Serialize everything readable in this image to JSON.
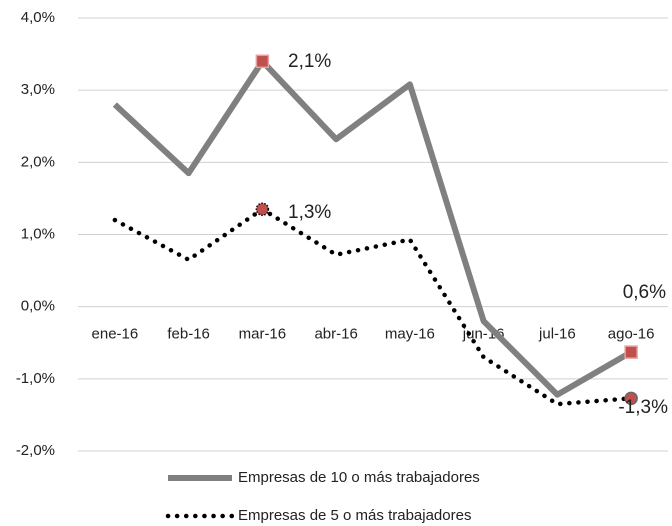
{
  "chart_data": {
    "type": "line",
    "categories": [
      "ene-16",
      "feb-16",
      "mar-16",
      "abr-16",
      "may-16",
      "jun-16",
      "jul-16",
      "ago-16"
    ],
    "series": [
      {
        "name": "Empresas de 10 o más trabajadores",
        "color": "#808080",
        "values": [
          2.8,
          1.85,
          3.4,
          2.32,
          3.08,
          -0.2,
          -1.22,
          -0.63
        ]
      },
      {
        "name": "Empresas de 5 o más trabajadores",
        "color": "#000000",
        "values": [
          1.2,
          0.65,
          1.35,
          0.72,
          0.93,
          -0.7,
          -1.35,
          -1.27
        ]
      }
    ],
    "marker_color": "#c0504d",
    "annotations": [
      "2,1%",
      "1,3%",
      "0,6%",
      "-1,3%"
    ],
    "ylim": [
      -2,
      4
    ],
    "yticks": [
      {
        "value": -2,
        "label": "-2,0%"
      },
      {
        "value": -1,
        "label": "-1,0%"
      },
      {
        "value": 0,
        "label": "0,0%"
      },
      {
        "value": 1,
        "label": "1,0%"
      },
      {
        "value": 2,
        "label": "2,0%"
      },
      {
        "value": 3,
        "label": "3,0%"
      },
      {
        "value": 4,
        "label": "4,0%"
      }
    ],
    "grid": true
  }
}
